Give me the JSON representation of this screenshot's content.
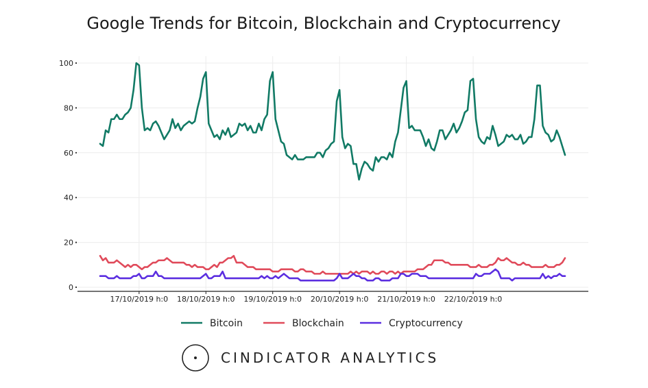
{
  "chart_data": {
    "type": "line",
    "title": "Google Trends for Bitcoin, Blockchain and Cryptocurrency",
    "xlabel": "",
    "ylabel": "",
    "ylim": [
      0,
      100
    ],
    "yticks": [
      0,
      20,
      40,
      60,
      80,
      100
    ],
    "x_tick_labels": [
      "17/10/2019 h:0",
      "18/10/2019 h:0",
      "19/10/2019 h:0",
      "20/10/2019 h:0",
      "21/10/2019 h:0",
      "22/10/2019 h:0"
    ],
    "x_tick_indices": [
      14,
      38,
      62,
      86,
      110,
      134
    ],
    "colors": {
      "Bitcoin": "#117a65",
      "Blockchain": "#e04a5a",
      "Cryptocurrency": "#5b2ee0"
    },
    "legend_position": "bottom-center",
    "grid": true,
    "series": [
      {
        "name": "Bitcoin",
        "values": [
          64,
          63,
          70,
          69,
          75,
          75,
          77,
          75,
          75,
          77,
          78,
          80,
          88,
          100,
          99,
          80,
          70,
          71,
          70,
          73,
          74,
          72,
          69,
          66,
          68,
          70,
          75,
          71,
          73,
          70,
          72,
          73,
          74,
          73,
          74,
          80,
          85,
          93,
          96,
          73,
          70,
          67,
          68,
          66,
          70,
          68,
          71,
          67,
          68,
          69,
          73,
          72,
          73,
          70,
          72,
          69,
          69,
          73,
          70,
          75,
          77,
          92,
          96,
          75,
          70,
          65,
          64,
          59,
          58,
          57,
          59,
          57,
          57,
          57,
          58,
          58,
          58,
          58,
          60,
          60,
          58,
          61,
          62,
          64,
          65,
          83,
          88,
          67,
          62,
          64,
          63,
          55,
          55,
          48,
          53,
          56,
          55,
          53,
          52,
          58,
          56,
          58,
          58,
          57,
          60,
          58,
          65,
          69,
          79,
          89,
          92,
          71,
          72,
          70,
          70,
          70,
          67,
          63,
          66,
          62,
          61,
          65,
          70,
          70,
          66,
          68,
          70,
          73,
          69,
          71,
          74,
          78,
          79,
          92,
          93,
          75,
          67,
          65,
          64,
          67,
          66,
          72,
          68,
          63,
          64,
          65,
          68,
          67,
          68,
          66,
          66,
          68,
          64,
          65,
          67,
          67,
          75,
          90,
          90,
          72,
          69,
          68,
          65,
          66,
          70,
          67,
          63,
          59
        ]
      },
      {
        "name": "Blockchain",
        "values": [
          14,
          12,
          13,
          11,
          11,
          11,
          12,
          11,
          10,
          9,
          10,
          9,
          10,
          10,
          9,
          8,
          9,
          9,
          10,
          11,
          11,
          12,
          12,
          12,
          13,
          12,
          11,
          11,
          11,
          11,
          11,
          10,
          10,
          9,
          10,
          9,
          9,
          9,
          8,
          8,
          9,
          10,
          9,
          11,
          11,
          12,
          13,
          13,
          14,
          11,
          11,
          11,
          10,
          9,
          9,
          9,
          8,
          8,
          8,
          8,
          8,
          8,
          7,
          7,
          7,
          8,
          8,
          8,
          8,
          8,
          7,
          7,
          8,
          8,
          7,
          7,
          7,
          6,
          6,
          6,
          7,
          6,
          6,
          6,
          6,
          6,
          6,
          6,
          6,
          6,
          7,
          6,
          7,
          6,
          7,
          7,
          7,
          6,
          7,
          6,
          6,
          7,
          7,
          6,
          7,
          7,
          6,
          7,
          6,
          7,
          7,
          7,
          7,
          7,
          8,
          8,
          8,
          9,
          10,
          10,
          12,
          12,
          12,
          12,
          11,
          11,
          10,
          10,
          10,
          10,
          10,
          10,
          10,
          9,
          9,
          9,
          10,
          9,
          9,
          9,
          10,
          10,
          11,
          13,
          12,
          12,
          13,
          12,
          11,
          11,
          10,
          10,
          11,
          10,
          10,
          9,
          9,
          9,
          9,
          9,
          10,
          9,
          9,
          9,
          10,
          10,
          11,
          13
        ]
      },
      {
        "name": "Cryptocurrency",
        "values": [
          5,
          5,
          5,
          4,
          4,
          4,
          5,
          4,
          4,
          4,
          4,
          4,
          5,
          5,
          6,
          4,
          4,
          5,
          5,
          5,
          7,
          5,
          5,
          4,
          4,
          4,
          4,
          4,
          4,
          4,
          4,
          4,
          4,
          4,
          4,
          4,
          4,
          5,
          6,
          4,
          4,
          5,
          5,
          5,
          7,
          4,
          4,
          4,
          4,
          4,
          4,
          4,
          4,
          4,
          4,
          4,
          4,
          4,
          5,
          4,
          5,
          4,
          4,
          5,
          4,
          5,
          6,
          5,
          4,
          4,
          4,
          4,
          3,
          3,
          3,
          3,
          3,
          3,
          3,
          3,
          3,
          3,
          3,
          3,
          3,
          4,
          6,
          4,
          4,
          4,
          5,
          6,
          5,
          5,
          4,
          4,
          3,
          3,
          3,
          4,
          4,
          3,
          3,
          3,
          3,
          4,
          4,
          4,
          6,
          6,
          5,
          5,
          6,
          6,
          6,
          5,
          5,
          5,
          4,
          4,
          4,
          4,
          4,
          4,
          4,
          4,
          4,
          4,
          4,
          4,
          4,
          4,
          4,
          4,
          4,
          6,
          5,
          5,
          6,
          6,
          6,
          7,
          8,
          7,
          4,
          4,
          4,
          4,
          3,
          4,
          4,
          4,
          4,
          4,
          4,
          4,
          4,
          4,
          4,
          6,
          4,
          5,
          4,
          5,
          5,
          6,
          5,
          5
        ]
      }
    ]
  },
  "footer": {
    "brand_text": "CINDICATOR ANALYTICS"
  }
}
